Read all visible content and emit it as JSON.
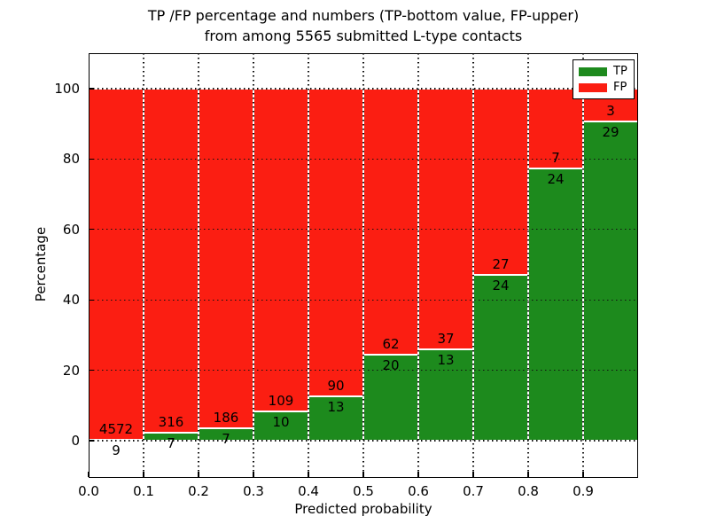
{
  "chart_data": {
    "type": "bar",
    "stacked": true,
    "title_line1": "TP /FP percentage and numbers (TP-bottom value, FP-upper)",
    "title_line2": "from among 5565 submitted L-type contacts",
    "xlabel": "Predicted probability",
    "ylabel": "Percentage",
    "xlim": [
      0.0,
      1.0
    ],
    "ylim": [
      -10.6,
      110.1
    ],
    "grid": true,
    "legend_position": "upper right",
    "x_tick_labels": [
      "0.0",
      "0.1",
      "0.2",
      "0.3",
      "0.4",
      "0.5",
      "0.6",
      "0.7",
      "0.8",
      "0.9"
    ],
    "y_tick_values": [
      0,
      20,
      40,
      60,
      80,
      100
    ],
    "series": [
      {
        "name": "TP",
        "color": "#1d8a1d"
      },
      {
        "name": "FP",
        "color": "#fb1e12"
      }
    ],
    "categories": [
      "0.0-0.1",
      "0.1-0.2",
      "0.2-0.3",
      "0.3-0.4",
      "0.4-0.5",
      "0.5-0.6",
      "0.6-0.7",
      "0.7-0.8",
      "0.8-0.9",
      "0.9-1.0"
    ],
    "bins": [
      {
        "range": "0.0-0.1",
        "tp": 9,
        "fp": 4572
      },
      {
        "range": "0.1-0.2",
        "tp": 7,
        "fp": 316
      },
      {
        "range": "0.2-0.3",
        "tp": 7,
        "fp": 186
      },
      {
        "range": "0.3-0.4",
        "tp": 10,
        "fp": 109
      },
      {
        "range": "0.4-0.5",
        "tp": 13,
        "fp": 90
      },
      {
        "range": "0.5-0.6",
        "tp": 20,
        "fp": 62
      },
      {
        "range": "0.6-0.7",
        "tp": 13,
        "fp": 37
      },
      {
        "range": "0.7-0.8",
        "tp": 24,
        "fp": 27
      },
      {
        "range": "0.8-0.9",
        "tp": 24,
        "fp": 7
      },
      {
        "range": "0.9-1.0",
        "tp": 29,
        "fp": 3
      }
    ]
  }
}
